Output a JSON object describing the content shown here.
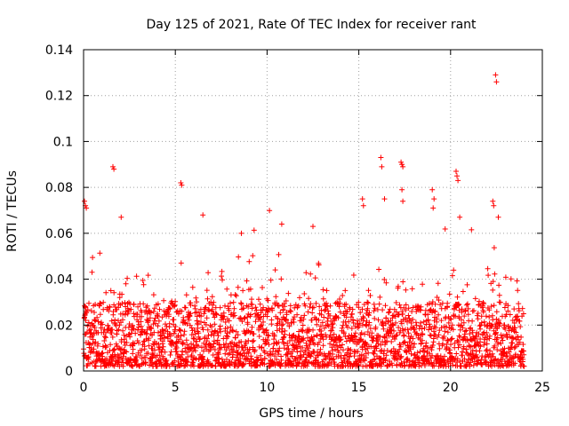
{
  "chart_data": {
    "type": "scatter",
    "title": "Day 125 of 2021, Rate Of TEC Index for receiver rant",
    "xlabel": "GPS time / hours",
    "ylabel": "ROTI / TECUs",
    "xlim": [
      0,
      25
    ],
    "ylim": [
      0,
      0.14
    ],
    "grid": true,
    "marker": "+",
    "color": "#ff0000",
    "x_ticks": [
      0,
      5,
      10,
      15,
      20,
      25
    ],
    "x_tick_labels": [
      "0",
      "5",
      "10",
      "15",
      "20",
      "25"
    ],
    "y_ticks": [
      0,
      0.02,
      0.04,
      0.06,
      0.08,
      0.1,
      0.12,
      0.14
    ],
    "y_tick_labels": [
      "0",
      "0.02",
      "0.04",
      "0.06",
      "0.08",
      "0.1",
      "0.12",
      "0.14"
    ],
    "data_time_range_hours": [
      0,
      24
    ],
    "typical_roti_range": [
      0.002,
      0.03
    ],
    "notable_points": [
      {
        "x": 0.05,
        "y": 0.074
      },
      {
        "x": 0.1,
        "y": 0.072
      },
      {
        "x": 0.15,
        "y": 0.071
      },
      {
        "x": 1.6,
        "y": 0.089
      },
      {
        "x": 1.65,
        "y": 0.088
      },
      {
        "x": 2.05,
        "y": 0.067
      },
      {
        "x": 5.3,
        "y": 0.082
      },
      {
        "x": 5.35,
        "y": 0.081
      },
      {
        "x": 6.5,
        "y": 0.068
      },
      {
        "x": 8.6,
        "y": 0.06
      },
      {
        "x": 10.8,
        "y": 0.064
      },
      {
        "x": 12.5,
        "y": 0.063
      },
      {
        "x": 15.2,
        "y": 0.075
      },
      {
        "x": 15.25,
        "y": 0.072
      },
      {
        "x": 16.2,
        "y": 0.093
      },
      {
        "x": 16.25,
        "y": 0.089
      },
      {
        "x": 16.4,
        "y": 0.075
      },
      {
        "x": 17.3,
        "y": 0.091
      },
      {
        "x": 17.35,
        "y": 0.09
      },
      {
        "x": 17.4,
        "y": 0.089
      },
      {
        "x": 17.35,
        "y": 0.079
      },
      {
        "x": 17.4,
        "y": 0.074
      },
      {
        "x": 19.0,
        "y": 0.079
      },
      {
        "x": 19.1,
        "y": 0.075
      },
      {
        "x": 19.05,
        "y": 0.071
      },
      {
        "x": 20.3,
        "y": 0.087
      },
      {
        "x": 20.35,
        "y": 0.085
      },
      {
        "x": 20.4,
        "y": 0.083
      },
      {
        "x": 20.5,
        "y": 0.067
      },
      {
        "x": 22.3,
        "y": 0.074
      },
      {
        "x": 22.35,
        "y": 0.072
      },
      {
        "x": 22.45,
        "y": 0.129
      },
      {
        "x": 22.5,
        "y": 0.126
      },
      {
        "x": 22.6,
        "y": 0.067
      }
    ]
  }
}
